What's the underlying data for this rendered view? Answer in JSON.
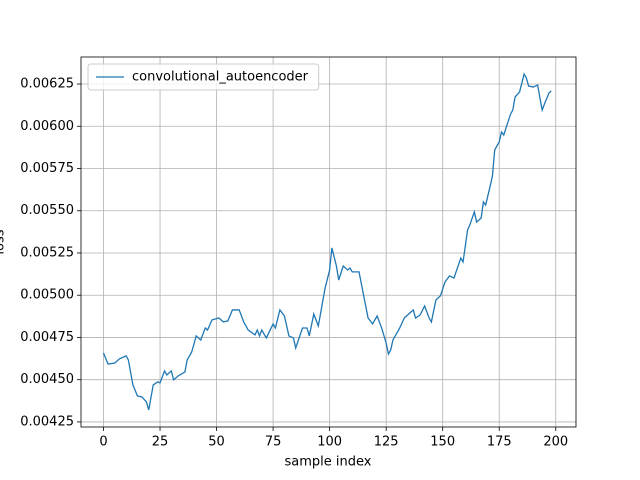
{
  "chart_data": {
    "type": "line",
    "xlabel": "sample index",
    "ylabel": "loss",
    "x": [
      0,
      2,
      5,
      7,
      10,
      11,
      13,
      15,
      17,
      19,
      20,
      22,
      24,
      25,
      27,
      28,
      30,
      31,
      33,
      36,
      37,
      39,
      41,
      43,
      45,
      46,
      48,
      51,
      53,
      55,
      57,
      60,
      62,
      64,
      67,
      68,
      69,
      70,
      72,
      75,
      76,
      78,
      80,
      82,
      84,
      85,
      88,
      90,
      91,
      93,
      95,
      98,
      100,
      101,
      103,
      104,
      106,
      108,
      109,
      110,
      113,
      115,
      117,
      119,
      121,
      123,
      125,
      126,
      127,
      128,
      131,
      133,
      135,
      137,
      138,
      140,
      142,
      144,
      145,
      147,
      149,
      151,
      153,
      155,
      158,
      159,
      161,
      162,
      164,
      165,
      167,
      168,
      169,
      171,
      172,
      173,
      175,
      176,
      177,
      178,
      180,
      181,
      182,
      184,
      186,
      187,
      188,
      190,
      192,
      193,
      194,
      195,
      197,
      198
    ],
    "series": [
      {
        "name": "convolutional_autoencoder",
        "color": "#1f77b4",
        "values": [
          0.004658,
          0.004593,
          0.004599,
          0.004623,
          0.004641,
          0.004617,
          0.004469,
          0.004404,
          0.004398,
          0.004368,
          0.004321,
          0.004469,
          0.004487,
          0.004481,
          0.004552,
          0.004528,
          0.004552,
          0.004499,
          0.004522,
          0.004546,
          0.004617,
          0.004664,
          0.004759,
          0.004735,
          0.004806,
          0.004794,
          0.004854,
          0.004865,
          0.004842,
          0.004848,
          0.004913,
          0.004913,
          0.004842,
          0.004794,
          0.004765,
          0.004794,
          0.004759,
          0.004794,
          0.004747,
          0.00483,
          0.004806,
          0.004913,
          0.004877,
          0.004759,
          0.004747,
          0.004688,
          0.004806,
          0.004806,
          0.004759,
          0.004889,
          0.004818,
          0.005043,
          0.005149,
          0.00528,
          0.005173,
          0.00509,
          0.005173,
          0.005149,
          0.005161,
          0.005138,
          0.005138,
          0.005001,
          0.004865,
          0.00483,
          0.004877,
          0.004806,
          0.004717,
          0.004652,
          0.004676,
          0.004735,
          0.004806,
          0.004865,
          0.004889,
          0.004913,
          0.004865,
          0.004883,
          0.004936,
          0.004865,
          0.004842,
          0.004972,
          0.004996,
          0.005078,
          0.005114,
          0.005102,
          0.00522,
          0.005197,
          0.005386,
          0.005416,
          0.005493,
          0.005433,
          0.005457,
          0.005552,
          0.005534,
          0.005646,
          0.005706,
          0.00586,
          0.005907,
          0.005966,
          0.005948,
          0.00599,
          0.006072,
          0.006096,
          0.006173,
          0.006203,
          0.006309,
          0.006286,
          0.006238,
          0.006232,
          0.006244,
          0.006167,
          0.006096,
          0.006132,
          0.006197,
          0.006209
        ]
      }
    ],
    "xlim": [
      -9.95,
      208.95
    ],
    "xticks": [
      0,
      25,
      50,
      75,
      100,
      125,
      150,
      175,
      200
    ],
    "ylim": [
      0.00422,
      0.00641
    ],
    "yticks": [
      0.00425,
      {
        "value": 0.0045,
        "label": "0.00450"
      },
      0.00475,
      {
        "value": 0.005,
        "label": "0.00500"
      },
      0.00525,
      {
        "value": 0.0055,
        "label": "0.00550"
      },
      0.00575,
      {
        "value": 0.006,
        "label": "0.00600"
      },
      0.00625
    ],
    "grid": true,
    "legend": "upper left"
  }
}
